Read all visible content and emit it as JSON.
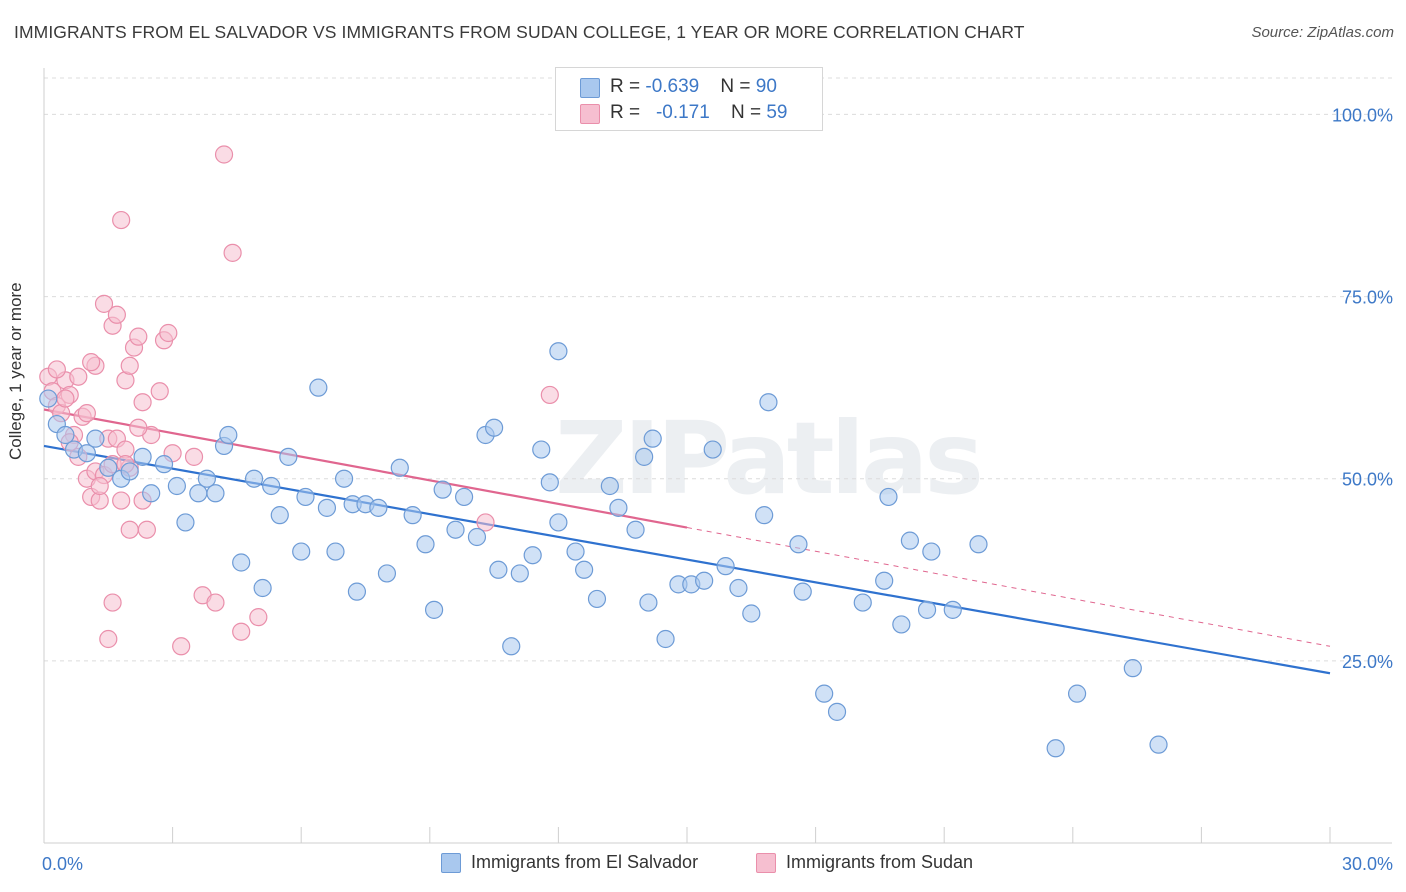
{
  "header": {
    "title": "IMMIGRANTS FROM EL SALVADOR VS IMMIGRANTS FROM SUDAN COLLEGE, 1 YEAR OR MORE CORRELATION CHART",
    "source": "Source: ZipAtlas.com"
  },
  "watermark": "ZIPatlas",
  "legend": {
    "rows": [
      {
        "r_label": "R = ",
        "r_value": "-0.639",
        "n_label": "N = ",
        "n_value": "90"
      },
      {
        "r_label": "R = ",
        "r_value": "-0.171",
        "n_label": "N = ",
        "n_value": "59"
      }
    ]
  },
  "bottom_legend": {
    "series1": "Immigrants from El Salvador",
    "series2": "Immigrants from Sudan"
  },
  "colors": {
    "blue_fill": "#a9c8ee",
    "blue_stroke": "#6d9bd6",
    "blue_line": "#2f72cf",
    "pink_fill": "#f6bfd0",
    "pink_stroke": "#ea8fab",
    "pink_line": "#e0668f",
    "axis_text": "#3d78c7"
  },
  "chart_data": {
    "type": "scatter",
    "title": "IMMIGRANTS FROM EL SALVADOR VS IMMIGRANTS FROM SUDAN COLLEGE, 1 YEAR OR MORE CORRELATION CHART",
    "xlabel": "",
    "ylabel": "College, 1 year or more",
    "xlim": [
      0,
      30
    ],
    "ylim": [
      0,
      105
    ],
    "x_tick_labels": [
      "0.0%",
      "30.0%"
    ],
    "y_ticks": [
      25,
      50,
      75,
      100
    ],
    "y_tick_labels": [
      "25.0%",
      "50.0%",
      "75.0%",
      "100.0%"
    ],
    "grid": true,
    "legend_position": "top-center",
    "series": [
      {
        "name": "Immigrants from El Salvador",
        "R": -0.639,
        "N": 90,
        "trend": {
          "x": [
            0,
            30
          ],
          "y": [
            54.5,
            23.3
          ]
        },
        "points": [
          [
            0.1,
            61
          ],
          [
            0.3,
            57.5
          ],
          [
            0.5,
            56
          ],
          [
            0.7,
            54
          ],
          [
            1.0,
            53.5
          ],
          [
            1.2,
            55.5
          ],
          [
            1.5,
            51.5
          ],
          [
            1.8,
            50
          ],
          [
            2.0,
            51
          ],
          [
            2.3,
            53
          ],
          [
            2.5,
            48
          ],
          [
            2.8,
            52
          ],
          [
            3.1,
            49
          ],
          [
            3.3,
            44
          ],
          [
            3.6,
            48
          ],
          [
            3.8,
            50
          ],
          [
            4.0,
            48
          ],
          [
            4.2,
            54.5
          ],
          [
            4.3,
            56
          ],
          [
            4.6,
            38.5
          ],
          [
            4.9,
            50
          ],
          [
            5.1,
            35
          ],
          [
            5.3,
            49
          ],
          [
            5.5,
            45
          ],
          [
            5.7,
            53
          ],
          [
            6.0,
            40
          ],
          [
            6.1,
            47.5
          ],
          [
            6.4,
            62.5
          ],
          [
            6.6,
            46
          ],
          [
            6.8,
            40
          ],
          [
            7.0,
            50
          ],
          [
            7.2,
            46.5
          ],
          [
            7.5,
            46.5
          ],
          [
            7.8,
            46
          ],
          [
            8.0,
            37
          ],
          [
            7.3,
            34.5
          ],
          [
            8.3,
            51.5
          ],
          [
            8.6,
            45
          ],
          [
            8.9,
            41
          ],
          [
            9.1,
            32
          ],
          [
            9.3,
            48.5
          ],
          [
            9.6,
            43
          ],
          [
            9.8,
            47.5
          ],
          [
            10.1,
            42
          ],
          [
            10.3,
            56
          ],
          [
            10.5,
            57
          ],
          [
            10.6,
            37.5
          ],
          [
            10.9,
            27
          ],
          [
            11.1,
            37
          ],
          [
            11.4,
            39.5
          ],
          [
            11.6,
            54
          ],
          [
            11.8,
            49.5
          ],
          [
            12.0,
            44
          ],
          [
            12.0,
            67.5
          ],
          [
            12.4,
            40
          ],
          [
            12.6,
            37.5
          ],
          [
            12.9,
            33.5
          ],
          [
            13.2,
            49
          ],
          [
            13.4,
            46
          ],
          [
            13.8,
            43
          ],
          [
            14.0,
            53
          ],
          [
            14.2,
            55.5
          ],
          [
            14.5,
            28
          ],
          [
            14.8,
            35.5
          ],
          [
            15.1,
            35.5
          ],
          [
            15.4,
            36
          ],
          [
            15.6,
            54
          ],
          [
            15.9,
            38
          ],
          [
            16.2,
            35
          ],
          [
            16.5,
            31.5
          ],
          [
            16.8,
            45
          ],
          [
            16.9,
            60.5
          ],
          [
            17.6,
            41
          ],
          [
            17.7,
            34.5
          ],
          [
            18.2,
            20.5
          ],
          [
            18.5,
            18
          ],
          [
            19.1,
            33
          ],
          [
            19.6,
            36
          ],
          [
            19.7,
            47.5
          ],
          [
            20.0,
            30
          ],
          [
            20.2,
            41.5
          ],
          [
            20.6,
            32
          ],
          [
            20.7,
            40
          ],
          [
            21.2,
            32
          ],
          [
            21.8,
            41
          ],
          [
            23.6,
            13
          ],
          [
            24.1,
            20.5
          ],
          [
            25.4,
            24
          ],
          [
            26.0,
            13.5
          ],
          [
            14.1,
            33
          ]
        ]
      },
      {
        "name": "Immigrants from Sudan",
        "R": -0.171,
        "N": 59,
        "trend_solid": {
          "x": [
            0,
            15
          ],
          "y": [
            59.5,
            43.3
          ]
        },
        "trend_dashed": {
          "x": [
            15,
            30
          ],
          "y": [
            43.3,
            27
          ]
        },
        "points": [
          [
            0.1,
            64
          ],
          [
            0.2,
            62
          ],
          [
            0.3,
            60
          ],
          [
            0.4,
            59
          ],
          [
            0.5,
            63.5
          ],
          [
            0.6,
            61.5
          ],
          [
            0.7,
            56
          ],
          [
            0.8,
            53
          ],
          [
            0.9,
            58.5
          ],
          [
            1.0,
            50
          ],
          [
            1.1,
            47.5
          ],
          [
            1.2,
            51
          ],
          [
            1.3,
            47
          ],
          [
            1.4,
            50.5
          ],
          [
            1.5,
            55.5
          ],
          [
            1.6,
            52
          ],
          [
            1.7,
            55.5
          ],
          [
            1.8,
            47
          ],
          [
            1.9,
            54
          ],
          [
            2.0,
            51.5
          ],
          [
            1.2,
            65.5
          ],
          [
            1.4,
            74
          ],
          [
            1.6,
            71
          ],
          [
            1.7,
            72.5
          ],
          [
            1.8,
            85.5
          ],
          [
            1.9,
            63.5
          ],
          [
            2.0,
            65.5
          ],
          [
            2.1,
            68
          ],
          [
            2.2,
            69.5
          ],
          [
            2.3,
            60.5
          ],
          [
            2.0,
            43
          ],
          [
            2.3,
            47
          ],
          [
            2.5,
            56
          ],
          [
            2.7,
            62
          ],
          [
            2.8,
            69
          ],
          [
            2.9,
            70
          ],
          [
            3.0,
            53.5
          ],
          [
            3.2,
            27
          ],
          [
            3.5,
            53
          ],
          [
            3.7,
            34
          ],
          [
            4.0,
            33
          ],
          [
            4.2,
            94.5
          ],
          [
            4.4,
            81
          ],
          [
            4.6,
            29
          ],
          [
            5.0,
            31
          ],
          [
            0.3,
            65
          ],
          [
            0.5,
            61
          ],
          [
            0.8,
            64
          ],
          [
            1.0,
            59
          ],
          [
            1.1,
            66
          ],
          [
            1.3,
            49
          ],
          [
            1.5,
            28
          ],
          [
            1.6,
            33
          ],
          [
            1.9,
            52
          ],
          [
            2.2,
            57
          ],
          [
            2.4,
            43
          ],
          [
            10.3,
            44
          ],
          [
            11.8,
            61.5
          ],
          [
            0.6,
            55
          ]
        ]
      }
    ]
  }
}
